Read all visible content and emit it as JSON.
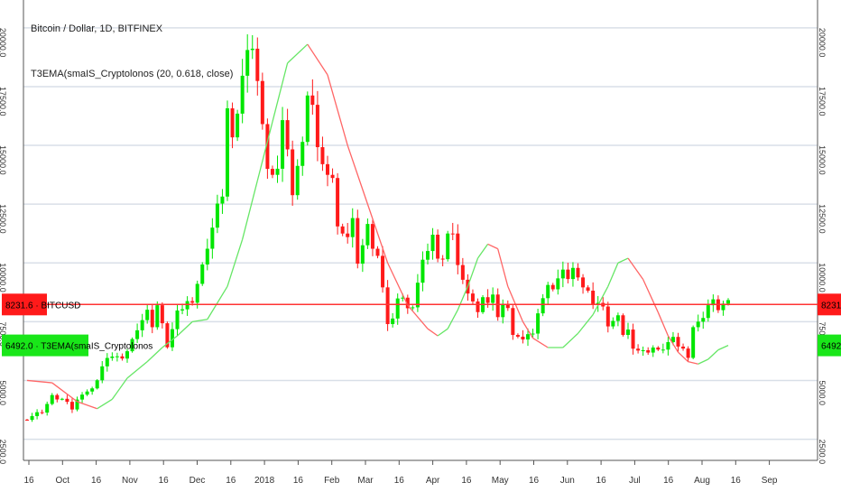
{
  "chart_data": {
    "type": "candlestick",
    "title": "Bitcoin / Dollar, 1D, BITFINEX",
    "indicator": "T3EMA(smaIS_Cryptolonos (20, 0.618, close)",
    "y_ticks": [
      "20000.0",
      "17500.0",
      "15000.0",
      "12500.0",
      "10000.0",
      "7500.0",
      "5000.0",
      "2500.0"
    ],
    "y_tick_values": [
      20000,
      17500,
      15000,
      12500,
      10000,
      7500,
      5000,
      2500
    ],
    "x_ticks": [
      "16",
      "Oct",
      "16",
      "Nov",
      "16",
      "Dec",
      "16",
      "2018",
      "16",
      "Feb",
      "Mar",
      "16",
      "Apr",
      "16",
      "May",
      "16",
      "Jun",
      "16",
      "Jul",
      "16",
      "Aug",
      "16",
      "Sep"
    ],
    "ylim": [
      1600,
      20800
    ],
    "grid": true,
    "price_label": "8231.6",
    "price_tag_text": "8231.6 · BITCUSD",
    "indicator_value": "6492.0",
    "indicator_tag_text": "6492.0 · T3EMA(smaIS_Cryptolonos",
    "price_value": 8231.6,
    "indicator_level": 6492.0,
    "colors": {
      "up": "#00e600",
      "down": "#ff1a1a",
      "grid": "#d9dfe8",
      "price_line": "#ff3333",
      "tag_red": "#ff1a1a",
      "tag_green": "#19e619"
    },
    "close_path": [
      [
        0,
        3400
      ],
      [
        3,
        3700
      ],
      [
        5,
        4300
      ],
      [
        7,
        4200
      ],
      [
        9,
        3800
      ],
      [
        11,
        4500
      ],
      [
        13,
        4600
      ],
      [
        15,
        5600
      ],
      [
        17,
        6100
      ],
      [
        18,
        6000
      ],
      [
        19,
        5800
      ],
      [
        20,
        6300
      ],
      [
        21,
        6700
      ],
      [
        22,
        7300
      ],
      [
        24,
        7900
      ],
      [
        25,
        7400
      ],
      [
        26,
        8200
      ],
      [
        27,
        7300
      ],
      [
        28,
        6500
      ],
      [
        30,
        7800
      ],
      [
        31,
        8100
      ],
      [
        33,
        8500
      ],
      [
        35,
        9800
      ],
      [
        36,
        10800
      ],
      [
        37,
        11500
      ],
      [
        38,
        12300
      ],
      [
        39,
        13000
      ],
      [
        40,
        16500
      ],
      [
        41,
        15000
      ],
      [
        42,
        16500
      ],
      [
        43,
        17800
      ],
      [
        44,
        19500
      ],
      [
        45,
        19200
      ],
      [
        46,
        17500
      ],
      [
        47,
        16200
      ],
      [
        48,
        14000
      ],
      [
        49,
        13500
      ],
      [
        50,
        14200
      ],
      [
        51,
        16000
      ],
      [
        52,
        14500
      ],
      [
        53,
        13000
      ],
      [
        54,
        14000
      ],
      [
        55,
        15500
      ],
      [
        56,
        17200
      ],
      [
        57,
        16500
      ],
      [
        58,
        15200
      ],
      [
        59,
        14200
      ],
      [
        60,
        13500
      ],
      [
        61,
        13800
      ],
      [
        62,
        11500
      ],
      [
        63,
        11000
      ],
      [
        64,
        11200
      ],
      [
        65,
        11800
      ],
      [
        66,
        10200
      ],
      [
        67,
        10800
      ],
      [
        68,
        11500
      ],
      [
        69,
        10800
      ],
      [
        70,
        10300
      ],
      [
        71,
        8800
      ],
      [
        72,
        7500
      ],
      [
        73,
        7600
      ],
      [
        74,
        8300
      ],
      [
        75,
        8600
      ],
      [
        76,
        8000
      ],
      [
        77,
        8300
      ],
      [
        78,
        9200
      ],
      [
        79,
        10000
      ],
      [
        80,
        10700
      ],
      [
        81,
        11200
      ],
      [
        82,
        10000
      ],
      [
        83,
        10300
      ],
      [
        84,
        11200
      ],
      [
        85,
        11000
      ],
      [
        86,
        10000
      ],
      [
        87,
        9200
      ],
      [
        88,
        8900
      ],
      [
        89,
        8400
      ],
      [
        90,
        7800
      ],
      [
        91,
        8700
      ],
      [
        92,
        8300
      ],
      [
        93,
        8500
      ],
      [
        94,
        7800
      ],
      [
        95,
        8200
      ],
      [
        96,
        7900
      ],
      [
        97,
        7000
      ],
      [
        98,
        6800
      ],
      [
        99,
        6900
      ],
      [
        100,
        7000
      ],
      [
        101,
        6900
      ],
      [
        102,
        8000
      ],
      [
        103,
        8500
      ],
      [
        104,
        8900
      ],
      [
        105,
        9000
      ],
      [
        106,
        9300
      ],
      [
        107,
        9500
      ],
      [
        108,
        9400
      ],
      [
        109,
        9700
      ],
      [
        110,
        9600
      ],
      [
        111,
        9000
      ],
      [
        112,
        8700
      ],
      [
        113,
        8400
      ],
      [
        114,
        8300
      ],
      [
        115,
        8000
      ],
      [
        116,
        7400
      ],
      [
        117,
        7500
      ],
      [
        118,
        7600
      ],
      [
        119,
        7000
      ],
      [
        120,
        7100
      ],
      [
        121,
        6500
      ],
      [
        122,
        6300
      ],
      [
        123,
        6200
      ],
      [
        124,
        6300
      ],
      [
        125,
        6400
      ],
      [
        126,
        6200
      ],
      [
        127,
        6400
      ],
      [
        128,
        6600
      ],
      [
        129,
        6700
      ],
      [
        130,
        6500
      ],
      [
        131,
        6300
      ],
      [
        132,
        6100
      ],
      [
        133,
        7300
      ],
      [
        134,
        7400
      ],
      [
        135,
        7800
      ],
      [
        136,
        8200
      ],
      [
        137,
        8300
      ],
      [
        138,
        8100
      ],
      [
        139,
        8231.6
      ]
    ],
    "t3_line": [
      [
        0,
        5000
      ],
      [
        5,
        4900
      ],
      [
        10,
        4100
      ],
      [
        14,
        3800
      ],
      [
        17,
        4200
      ],
      [
        20,
        5100
      ],
      [
        24,
        5800
      ],
      [
        27,
        6400
      ],
      [
        30,
        6900
      ],
      [
        33,
        7500
      ],
      [
        36,
        7600
      ],
      [
        40,
        9000
      ],
      [
        43,
        11000
      ],
      [
        46,
        13500
      ],
      [
        49,
        16000
      ],
      [
        52,
        18500
      ],
      [
        56,
        19300
      ],
      [
        60,
        18000
      ],
      [
        64,
        15000
      ],
      [
        68,
        12500
      ],
      [
        72,
        10000
      ],
      [
        76,
        8200
      ],
      [
        80,
        7200
      ],
      [
        82,
        6900
      ],
      [
        84,
        7200
      ],
      [
        86,
        8000
      ],
      [
        88,
        9000
      ],
      [
        90,
        10200
      ],
      [
        92,
        10800
      ],
      [
        94,
        10600
      ],
      [
        96,
        9000
      ],
      [
        99,
        7500
      ],
      [
        101,
        6800
      ],
      [
        104,
        6400
      ],
      [
        107,
        6400
      ],
      [
        110,
        7000
      ],
      [
        113,
        7800
      ],
      [
        116,
        9000
      ],
      [
        118,
        10000
      ],
      [
        120,
        10200
      ],
      [
        123,
        9300
      ],
      [
        126,
        7900
      ],
      [
        128,
        6900
      ],
      [
        130,
        6200
      ],
      [
        132,
        5800
      ],
      [
        134,
        5700
      ],
      [
        136,
        5900
      ],
      [
        138,
        6300
      ],
      [
        140,
        6492
      ]
    ],
    "candle_count": 141
  }
}
